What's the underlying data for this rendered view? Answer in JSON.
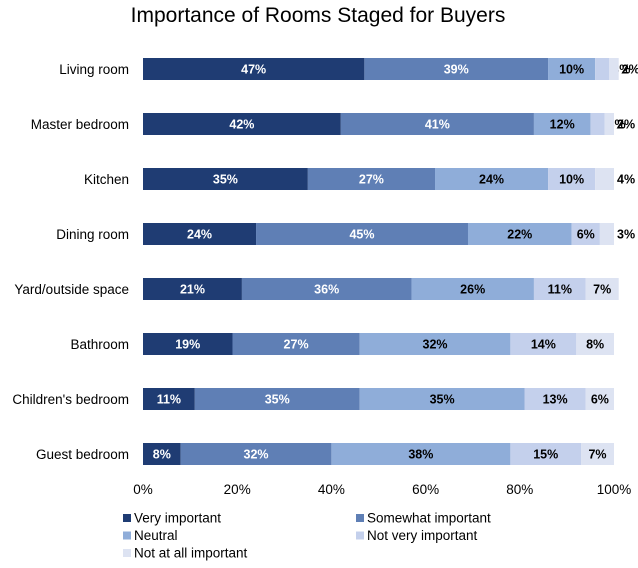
{
  "chart_data": {
    "type": "bar",
    "orientation": "horizontal",
    "stacked": true,
    "title": "Importance of Rooms Staged for Buyers",
    "categories": [
      "Living room",
      "Master bedroom",
      "Kitchen",
      "Dining room",
      "Yard/outside space",
      "Bathroom",
      "Children's bedroom",
      "Guest bedroom"
    ],
    "series": [
      {
        "name": "Very important",
        "color": "#1f3c73",
        "values": [
          47,
          42,
          35,
          24,
          21,
          19,
          11,
          8
        ]
      },
      {
        "name": "Somewhat important",
        "color": "#5f7fb5",
        "values": [
          39,
          41,
          27,
          45,
          36,
          27,
          35,
          32
        ]
      },
      {
        "name": "Neutral",
        "color": "#8fadd9",
        "values": [
          10,
          12,
          24,
          22,
          26,
          32,
          35,
          38
        ]
      },
      {
        "name": "Not very important",
        "color": "#c4d0ec",
        "values": [
          3,
          3,
          10,
          6,
          11,
          14,
          13,
          15
        ]
      },
      {
        "name": "Not at all important",
        "color": "#dde3f2",
        "values": [
          2,
          2,
          4,
          3,
          7,
          8,
          6,
          7
        ]
      }
    ],
    "xlim": [
      0,
      100
    ],
    "xticks": [
      "0%",
      "20%",
      "40%",
      "60%",
      "80%",
      "100%"
    ],
    "xtick_values": [
      0,
      20,
      40,
      60,
      80,
      100
    ],
    "value_suffix": "%",
    "grid": false,
    "legend_position": "bottom"
  }
}
